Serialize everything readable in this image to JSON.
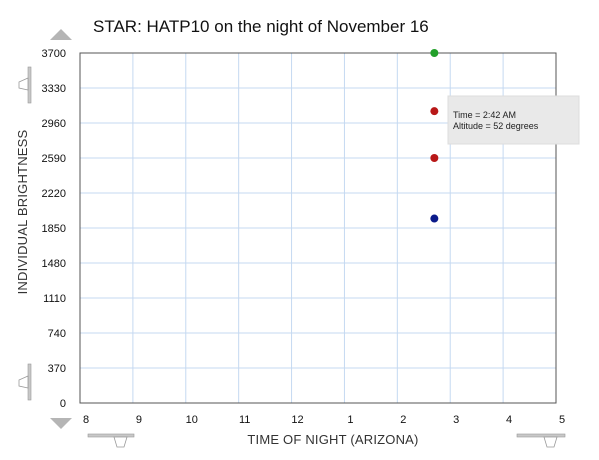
{
  "chart_data": {
    "type": "scatter",
    "title": "STAR: HATP10 on the night of November 16",
    "xlabel": "TIME OF NIGHT (ARIZONA)",
    "ylabel": "INDIVIDUAL BRIGHTNESS",
    "x_tick_labels": [
      "8",
      "9",
      "10",
      "11",
      "12",
      "1",
      "2",
      "3",
      "4",
      "5"
    ],
    "y_ticks": [
      0,
      370,
      740,
      1110,
      1480,
      1850,
      2220,
      2590,
      2960,
      3330,
      3700
    ],
    "xlim": [
      0,
      9
    ],
    "ylim": [
      0,
      3700
    ],
    "grid": true,
    "points": [
      {
        "x": 6.7,
        "y": 3700,
        "color": "#22a02a"
      },
      {
        "x": 6.7,
        "y": 3085,
        "color": "#b81818"
      },
      {
        "x": 6.7,
        "y": 2590,
        "color": "#b81818"
      },
      {
        "x": 6.7,
        "y": 1950,
        "color": "#0a1a8a"
      }
    ],
    "tooltip": {
      "lines": [
        "Time = 2:42 AM",
        "Altitude = 52 degrees"
      ]
    }
  },
  "colors": {
    "grid": "#c5d9f1",
    "frame": "#555555",
    "control": "#b8b8b8"
  },
  "icons": {
    "zoom_up": "triangle-up-icon",
    "zoom_down": "triangle-down-icon",
    "y_slider_top": "slider-handle-icon",
    "y_slider_bottom": "slider-handle-icon",
    "x_slider_left": "slider-handle-icon",
    "x_slider_right": "slider-handle-icon"
  }
}
